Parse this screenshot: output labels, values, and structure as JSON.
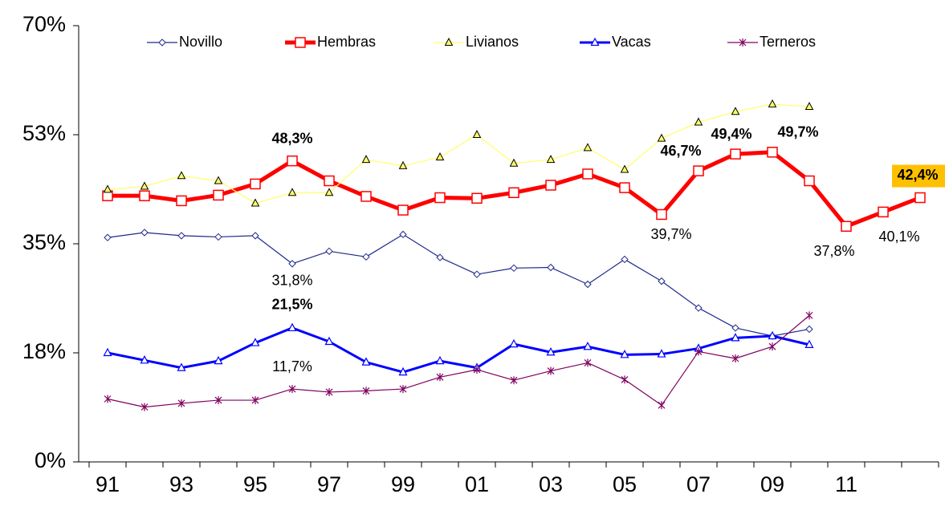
{
  "chart_data": {
    "type": "line",
    "categories": [
      "91",
      null,
      "93",
      null,
      "95",
      null,
      "97",
      null,
      "99",
      null,
      "01",
      null,
      "03",
      null,
      "05",
      null,
      "07",
      null,
      "09",
      null,
      "11",
      null,
      null
    ],
    "ylim": [
      0,
      70
    ],
    "yticks": [
      {
        "value": 0,
        "label": "0%"
      },
      {
        "value": 17.5,
        "label": "18%"
      },
      {
        "value": 35,
        "label": "35%"
      },
      {
        "value": 52.5,
        "label": "53%"
      },
      {
        "value": 70,
        "label": "70%"
      }
    ],
    "series": [
      {
        "name": "Novillo",
        "color": "#1f2a8a",
        "marker": "diamond",
        "values": [
          36.0,
          36.8,
          36.3,
          36.1,
          36.3,
          31.8,
          33.8,
          32.9,
          36.5,
          32.8,
          30.1,
          31.1,
          31.2,
          28.5,
          32.5,
          29.0,
          24.7,
          21.5,
          20.2,
          21.3,
          null,
          null,
          null
        ],
        "value_labels": [
          null,
          null,
          null,
          null,
          null,
          "31,8%",
          null,
          null,
          null,
          null,
          null,
          null,
          null,
          null,
          null,
          null,
          null,
          null,
          null,
          null,
          null,
          null,
          null
        ]
      },
      {
        "name": "Hembras",
        "color": "#ff0000",
        "marker": "square",
        "values": [
          42.7,
          42.7,
          41.9,
          42.8,
          44.6,
          48.3,
          45.1,
          42.6,
          40.4,
          42.4,
          42.3,
          43.2,
          44.4,
          46.2,
          44.0,
          39.7,
          46.7,
          49.4,
          49.7,
          45.1,
          37.8,
          40.1,
          42.4
        ],
        "value_labels": [
          null,
          null,
          null,
          null,
          null,
          "48,3%",
          null,
          null,
          null,
          null,
          null,
          null,
          null,
          null,
          null,
          "39,7%",
          "46,7%",
          "49,4%",
          "49,7%",
          null,
          "37,8%",
          "40,1%",
          "42,4%"
        ]
      },
      {
        "name": "Livianos",
        "color": "#ffff66",
        "marker": "triangle-filled",
        "values": [
          43.7,
          44.2,
          45.9,
          45.1,
          41.5,
          43.2,
          43.2,
          48.5,
          47.5,
          48.9,
          52.5,
          47.9,
          48.5,
          50.4,
          46.9,
          51.9,
          54.5,
          56.2,
          57.4,
          57.0,
          null,
          null,
          null
        ]
      },
      {
        "name": "Vacas",
        "color": "#0000ff",
        "marker": "triangle",
        "values": [
          17.5,
          16.3,
          15.1,
          16.2,
          19.1,
          21.5,
          19.3,
          16.0,
          14.4,
          16.2,
          15.1,
          18.9,
          17.6,
          18.5,
          17.2,
          17.3,
          18.2,
          19.9,
          20.2,
          18.8,
          null,
          null,
          null
        ],
        "value_labels": [
          null,
          null,
          null,
          null,
          null,
          "21,5%",
          null,
          null,
          null,
          null,
          null,
          null,
          null,
          null,
          null,
          null,
          null,
          null,
          null,
          null,
          null,
          null,
          null
        ]
      },
      {
        "name": "Terneros",
        "color": "#800060",
        "marker": "star",
        "values": [
          10.1,
          8.8,
          9.4,
          9.9,
          9.9,
          11.7,
          11.2,
          11.4,
          11.7,
          13.6,
          14.8,
          13.1,
          14.6,
          15.9,
          13.2,
          9.1,
          17.7,
          16.6,
          18.5,
          23.5,
          null,
          null,
          null
        ],
        "value_labels": [
          null,
          null,
          null,
          null,
          null,
          "11,7%",
          null,
          null,
          null,
          null,
          null,
          null,
          null,
          null,
          null,
          null,
          null,
          null,
          null,
          null,
          null,
          null,
          null
        ]
      }
    ]
  }
}
